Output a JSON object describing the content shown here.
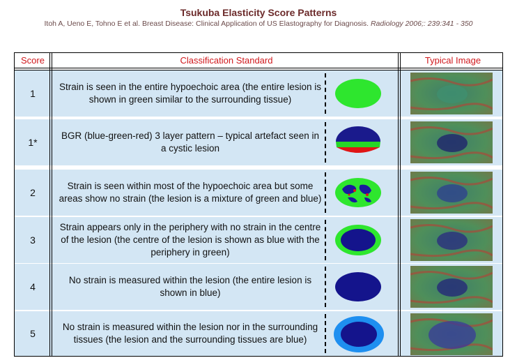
{
  "header": {
    "title": "Tsukuba Elasticity Score Patterns",
    "citation": "Itoh A, Ueno E, Tohno E et al. Breast Disease: Clinical Application of US Elastography for Diagnosis.",
    "journal": "Radiology 2006;: 239:341 - 350"
  },
  "table": {
    "columns": [
      "Score",
      "Classification Standard",
      "Typical Image"
    ],
    "rows": [
      [
        "1",
        "Strain is seen in the entire hypoechoic area (the entire lesion is shown in green similar to the surrounding tissue)"
      ],
      [
        "1*",
        "BGR (blue-green-red) 3 layer pattern – typical artefact seen in a cystic lesion"
      ],
      [
        "2",
        "Strain is seen within most of the hypoechoic area but some areas show no strain (the lesion is a mixture of green and blue)"
      ],
      [
        "3",
        "Strain appears only in the periphery with no strain in the centre of the lesion (the centre of the lesion is shown as blue with the periphery in green)"
      ],
      [
        "4",
        "No strain is measured within the lesion (the entire lesion is shown in blue)"
      ],
      [
        "5",
        "No strain is measured within the lesion nor in the surrounding tissues (the lesion and the surrounding tissues are blue)"
      ]
    ]
  }
}
